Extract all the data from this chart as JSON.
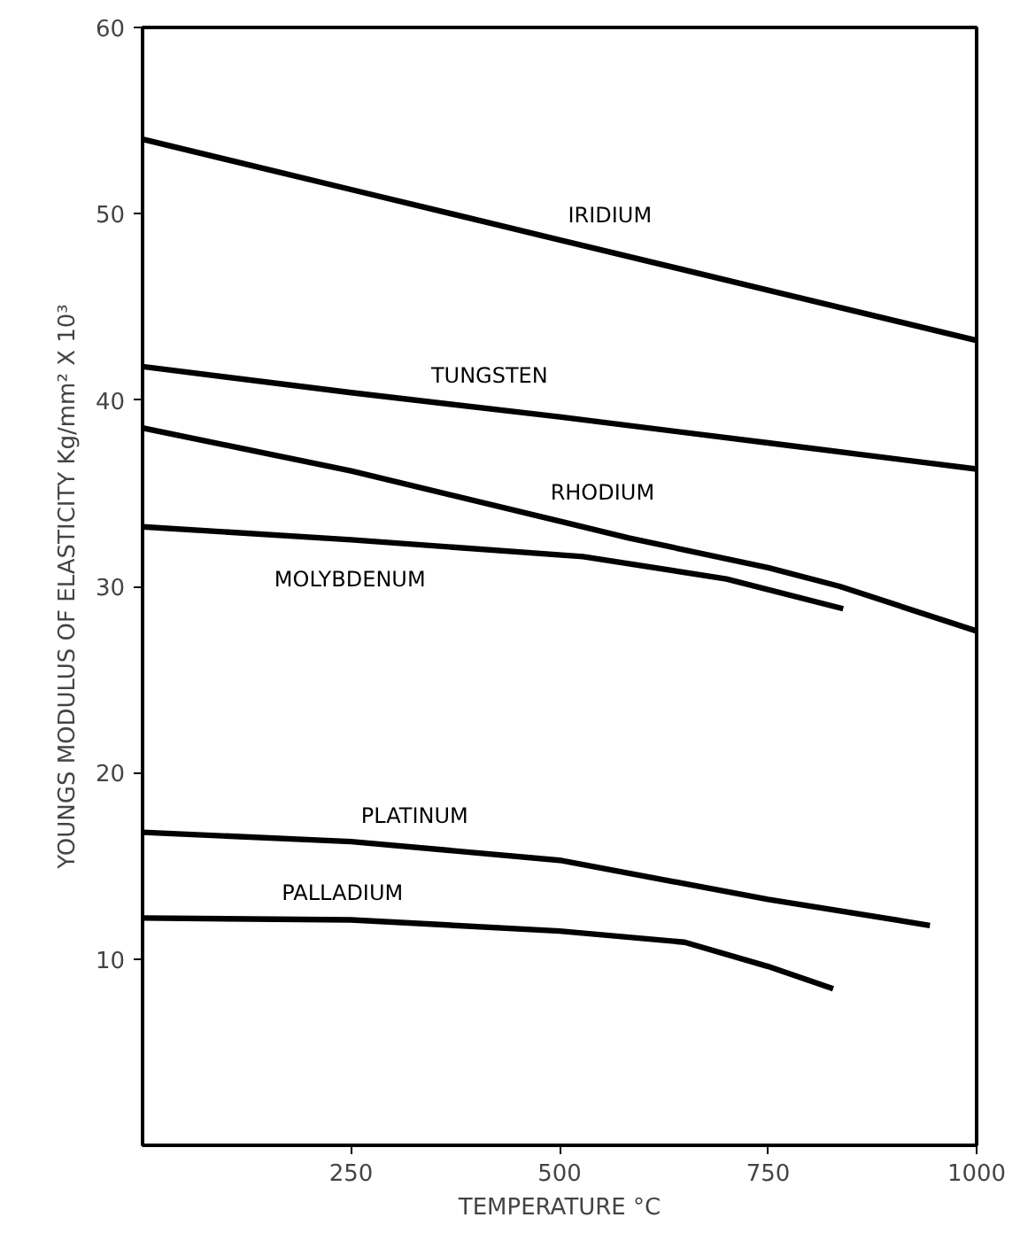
{
  "chart_data": {
    "type": "line",
    "xlabel": "TEMPERATURE °C",
    "ylabel": "YOUNGS MODULUS OF ELASTICITY Kg/mm² X 10³",
    "xlim": [
      0,
      1000
    ],
    "ylim": [
      0,
      60
    ],
    "xticks": [
      250,
      500,
      750,
      1000
    ],
    "yticks": [
      10,
      20,
      30,
      40,
      50,
      60
    ],
    "grid": false,
    "marker": "none",
    "line_style": "solid",
    "series": [
      {
        "name": "IRIDIUM",
        "color": "#000000",
        "x": [
          0,
          250,
          500,
          750,
          1000
        ],
        "values": [
          54,
          51.3,
          48.6,
          45.9,
          43.2
        ]
      },
      {
        "name": "TUNGSTEN",
        "color": "#000000",
        "x": [
          0,
          250,
          500,
          750,
          1000
        ],
        "values": [
          41.8,
          40.4,
          39.1,
          37.7,
          36.3
        ]
      },
      {
        "name": "RHODIUM",
        "color": "#000000",
        "x": [
          0,
          250,
          500,
          583,
          750,
          836,
          1000
        ],
        "values": [
          38.5,
          36.2,
          33.5,
          32.6,
          31.0,
          30.0,
          27.6
        ]
      },
      {
        "name": "MOLYBDENUM",
        "color": "#000000",
        "x": [
          0,
          250,
          528,
          700,
          840
        ],
        "values": [
          33.2,
          32.5,
          31.6,
          30.4,
          28.8
        ]
      },
      {
        "name": "PLATINUM",
        "color": "#000000",
        "x": [
          0,
          250,
          500,
          750,
          944
        ],
        "values": [
          16.8,
          16.3,
          15.3,
          13.2,
          11.8
        ]
      },
      {
        "name": "PALLADIUM",
        "color": "#000000",
        "x": [
          0,
          250,
          500,
          650,
          750,
          828
        ],
        "values": [
          12.2,
          12.1,
          11.5,
          10.9,
          9.6,
          8.4
        ]
      }
    ]
  }
}
